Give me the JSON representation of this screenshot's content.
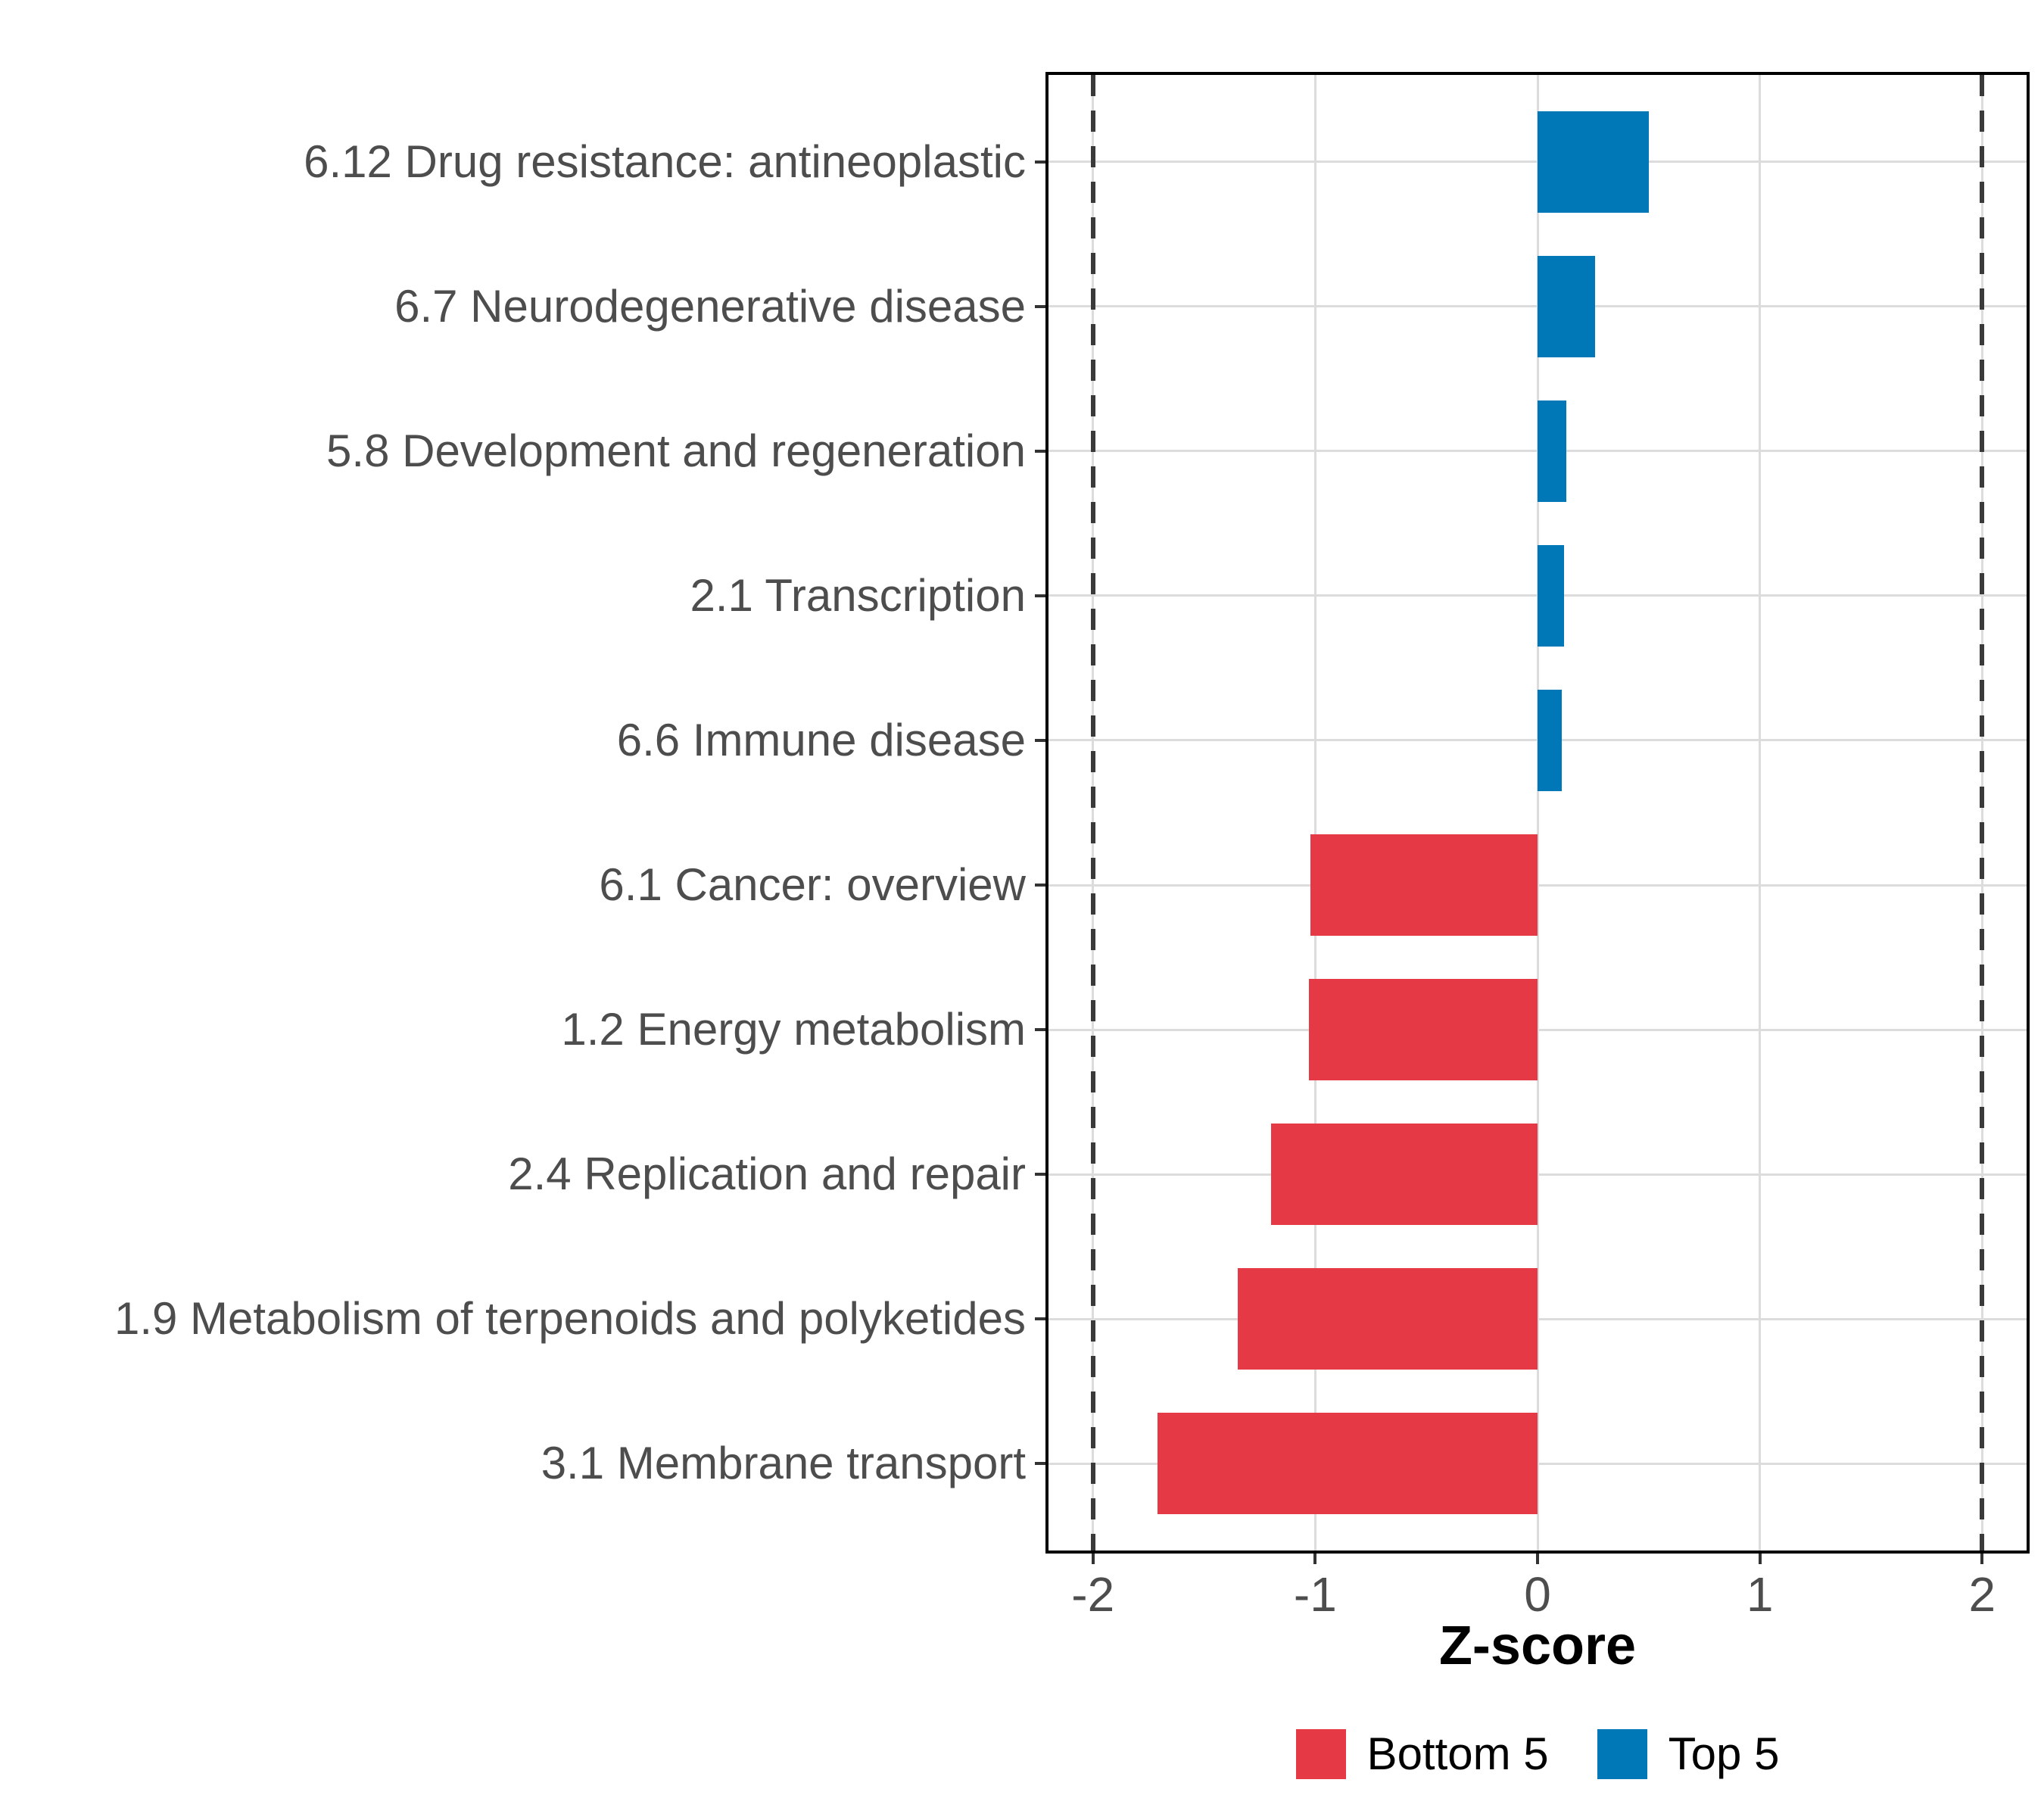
{
  "chart_data": {
    "type": "bar",
    "orientation": "horizontal",
    "title": "",
    "xlabel": "Z-score",
    "ylabel": "",
    "xlim": [
      -2.2,
      2.2
    ],
    "xticks": [
      -2,
      -1,
      0,
      1,
      2
    ],
    "xtick_labels": [
      "-2",
      "-1",
      "0",
      "1",
      "2"
    ],
    "reference_lines": [
      -2,
      2
    ],
    "grid": true,
    "bar_width_fraction": 0.7,
    "categories": [
      {
        "label": "6.12 Drug resistance: antineoplastic",
        "value": 0.5,
        "group": "Top 5"
      },
      {
        "label": "6.7 Neurodegenerative disease",
        "value": 0.26,
        "group": "Top 5"
      },
      {
        "label": "5.8 Development and regeneration",
        "value": 0.13,
        "group": "Top 5"
      },
      {
        "label": "2.1 Transcription",
        "value": 0.12,
        "group": "Top 5"
      },
      {
        "label": "6.6 Immune disease",
        "value": 0.11,
        "group": "Top 5"
      },
      {
        "label": "6.1 Cancer: overview",
        "value": -1.02,
        "group": "Bottom 5"
      },
      {
        "label": "1.2 Energy metabolism",
        "value": -1.03,
        "group": "Bottom 5"
      },
      {
        "label": "2.4 Replication and repair",
        "value": -1.2,
        "group": "Bottom 5"
      },
      {
        "label": "1.9 Metabolism of terpenoids and polyketides",
        "value": -1.35,
        "group": "Bottom 5"
      },
      {
        "label": "3.1 Membrane transport",
        "value": -1.71,
        "group": "Bottom 5"
      }
    ],
    "legend": {
      "position": "bottom",
      "entries": [
        {
          "label": "Bottom 5",
          "color": "#E63946"
        },
        {
          "label": "Top 5",
          "color": "#0077B6"
        }
      ]
    },
    "colors": {
      "bottom_5": "#E63946",
      "top_5": "#0077B6",
      "gridline": "#DCDCDC",
      "reference_line": "#3A3A3A",
      "axis_text": "#4D4D4D",
      "axis_title": "#000000",
      "tick": "#333333",
      "panel_border": "#000000",
      "background": "#FFFFFF"
    }
  }
}
